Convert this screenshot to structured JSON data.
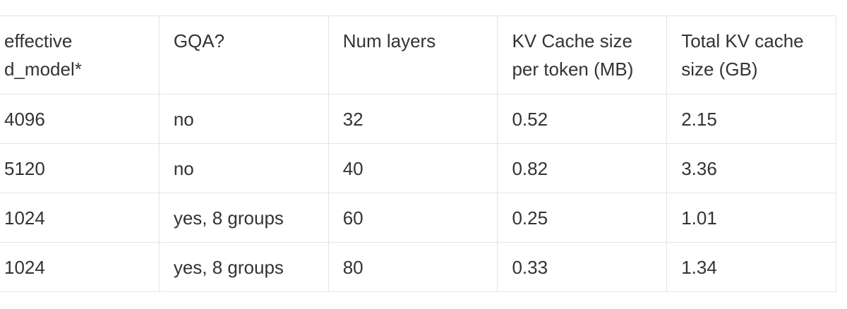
{
  "table": {
    "header": [
      "effective d_model*",
      "GQA?",
      "Num layers",
      "KV Cache size per token (MB)",
      "Total KV cache size (GB)"
    ],
    "rows": [
      [
        "4096",
        "no",
        "32",
        "0.52",
        "2.15"
      ],
      [
        "5120",
        "no",
        "40",
        "0.82",
        "3.36"
      ],
      [
        "1024",
        "yes, 8 groups",
        "60",
        "0.25",
        "1.01"
      ],
      [
        "1024",
        "yes, 8 groups",
        "80",
        "0.33",
        "1.34"
      ]
    ]
  }
}
